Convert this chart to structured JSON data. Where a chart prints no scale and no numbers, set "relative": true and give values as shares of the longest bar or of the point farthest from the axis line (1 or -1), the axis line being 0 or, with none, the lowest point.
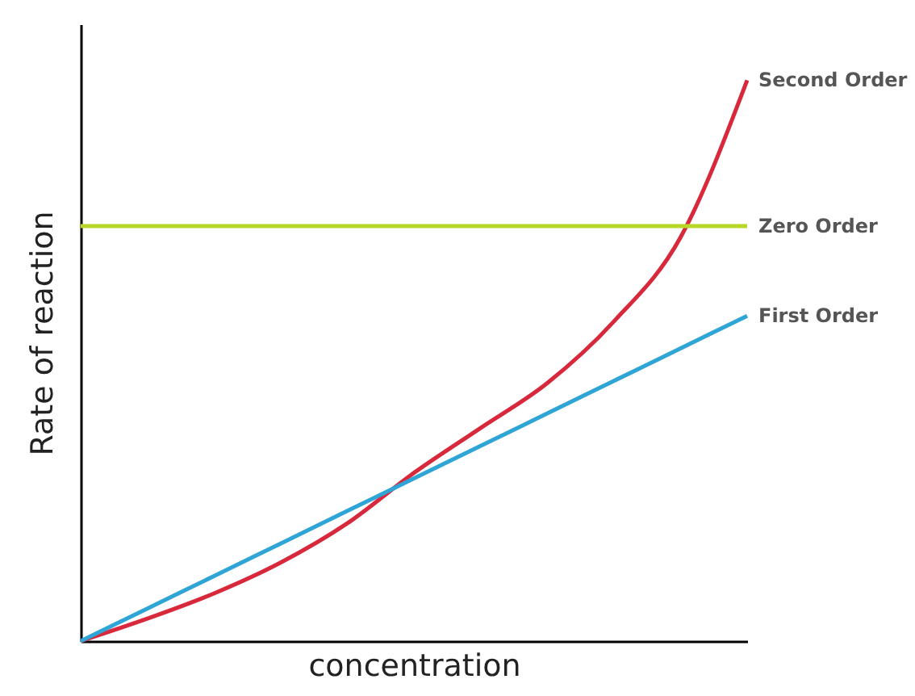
{
  "chart_data": {
    "type": "line",
    "relative": true,
    "xlabel": "concentration",
    "ylabel": "Rate of reaction",
    "tick_labels": false,
    "grid": false,
    "categories": [
      null,
      null,
      null,
      null,
      null,
      null,
      null,
      null,
      null,
      null,
      null
    ],
    "series": [
      {
        "name": "Second Order",
        "color": "#d8283c",
        "values": [
          0,
          0.04,
          0.085,
          0.14,
          0.21,
          0.3,
          0.38,
          0.46,
          0.57,
          0.72,
          1
        ]
      },
      {
        "name": "Zero Order",
        "color": "#b8d829",
        "values": [
          0.74,
          0.74,
          0.74,
          0.74,
          0.74,
          0.74,
          0.74,
          0.74,
          0.74,
          0.74,
          0.74
        ]
      },
      {
        "name": "First Order",
        "color": "#2ea5d6",
        "values": [
          0,
          0.058,
          0.116,
          0.174,
          0.232,
          0.29,
          0.348,
          0.406,
          0.464,
          0.522,
          0.58
        ]
      }
    ]
  }
}
